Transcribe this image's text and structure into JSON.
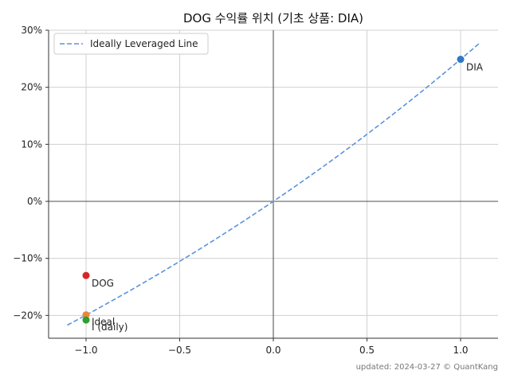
{
  "chart_data": {
    "type": "scatter",
    "title": "DOG 수익률 위치 (기초 상품: DIA)",
    "xlim": [
      -1.2,
      1.2
    ],
    "ylim": [
      -0.24,
      0.3
    ],
    "x_ticks": [
      -1.0,
      -0.5,
      0.0,
      0.5,
      1.0
    ],
    "x_tick_labels": [
      "−1.0",
      "−0.5",
      "0.0",
      "0.5",
      "1.0"
    ],
    "y_ticks": [
      -0.2,
      -0.1,
      0.0,
      0.1,
      0.2,
      0.3
    ],
    "y_tick_labels": [
      "−20%",
      "−10%",
      "0%",
      "10%",
      "20%",
      "30%"
    ],
    "grid": true,
    "legend": {
      "position": "top-left",
      "entries": [
        "Ideally Leveraged Line"
      ]
    },
    "line": {
      "name": "Ideally Leveraged Line",
      "style": "dashed",
      "color": "#5b93db",
      "x_range": [
        -1.1,
        1.1
      ],
      "underlying_return": 0.249
    },
    "points": [
      {
        "label": "DIA",
        "x": 1.0,
        "y": 0.249,
        "color": "#2f78c4"
      },
      {
        "label": "DOG",
        "x": -1.0,
        "y": -0.13,
        "color": "#d62728"
      },
      {
        "label": "Ideal",
        "x": -1.0,
        "y": -0.199,
        "color": "#e8883a"
      },
      {
        "label": "I (daily)",
        "x": -1.0,
        "y": -0.208,
        "color": "#2ca02c"
      }
    ],
    "footer": "updated: 2024-03-27 © QuantKang"
  }
}
